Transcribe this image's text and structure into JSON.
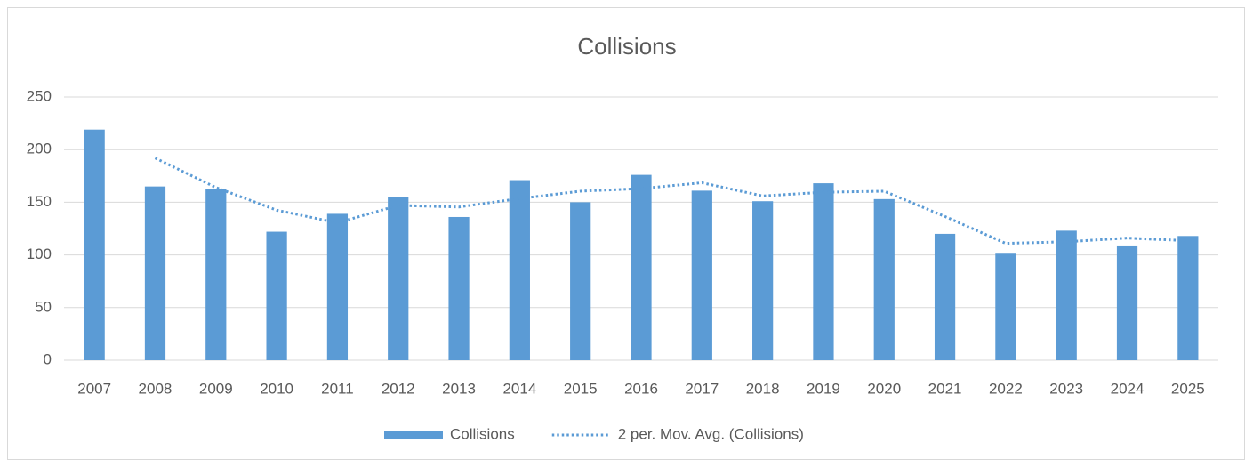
{
  "chart_data": {
    "type": "bar",
    "title": "Collisions",
    "categories": [
      "2007",
      "2008",
      "2009",
      "2010",
      "2011",
      "2012",
      "2013",
      "2014",
      "2015",
      "2016",
      "2017",
      "2018",
      "2019",
      "2020",
      "2021",
      "2022",
      "2023",
      "2024",
      "2025"
    ],
    "series": [
      {
        "name": "Collisions",
        "color": "#5b9bd5",
        "type": "bar",
        "values": [
          219,
          165,
          163,
          122,
          139,
          155,
          136,
          171,
          150,
          176,
          161,
          151,
          168,
          153,
          120,
          102,
          123,
          109,
          118
        ]
      },
      {
        "name": "2 per. Mov. Avg. (Collisions)",
        "color": "#5b9bd5",
        "type": "line",
        "dotted": true,
        "values": [
          null,
          192,
          164,
          142.5,
          130.5,
          147,
          145.5,
          153.5,
          160.5,
          163,
          168.5,
          156,
          159.5,
          160.5,
          136.5,
          111,
          112.5,
          116,
          113.5
        ]
      }
    ],
    "ylim": [
      0,
      250
    ],
    "yticks": [
      0,
      50,
      100,
      150,
      200,
      250
    ],
    "grid": true,
    "legend": "bottom"
  }
}
